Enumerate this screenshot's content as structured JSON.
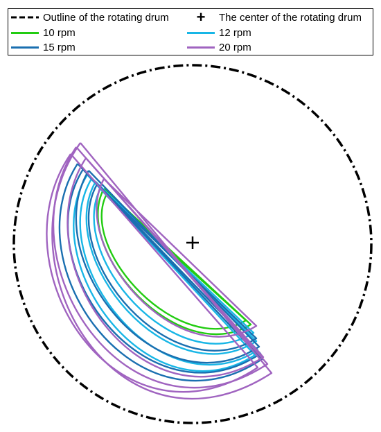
{
  "legend": {
    "outline_label": "Outline of the rotating drum",
    "center_label": "The center of the rotating drum",
    "center_marker": "+",
    "items": [
      {
        "label": "10 rpm",
        "color": "#22cc11"
      },
      {
        "label": "12 rpm",
        "color": "#18b6e6"
      },
      {
        "label": "15 rpm",
        "color": "#1a6fb0"
      },
      {
        "label": "20 rpm",
        "color": "#a064c0"
      }
    ]
  },
  "diagram": {
    "outline_color": "#000000",
    "center_color": "#000000"
  }
}
